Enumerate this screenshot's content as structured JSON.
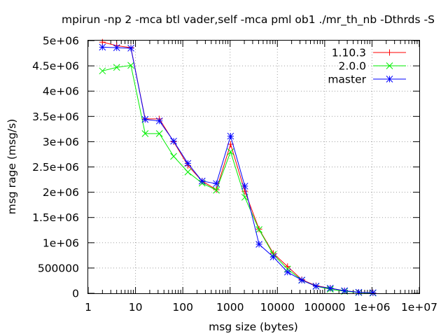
{
  "chart_data": {
    "type": "line",
    "title": "mpirun -np 2 -mca btl vader,self -mca pml ob1 ./mr_th_nb -Dthrds -S",
    "xlabel": "msg size (bytes)",
    "ylabel": "msg rage (msg/s)",
    "xscale": "log",
    "xlim": [
      1,
      10000000
    ],
    "ylim": [
      0,
      5000000
    ],
    "x_ticks": [
      1,
      10,
      100,
      1000,
      10000,
      100000,
      1000000,
      10000000
    ],
    "x_tick_labels": [
      "1",
      "10",
      "100",
      "1000",
      "10000",
      "100000",
      "1e+06",
      "1e+07"
    ],
    "y_ticks": [
      0,
      500000,
      1000000,
      1500000,
      2000000,
      2500000,
      3000000,
      3500000,
      4000000,
      4500000,
      5000000
    ],
    "y_tick_labels": [
      "0",
      "500000",
      "1e+06",
      "1.5e+06",
      "2e+06",
      "2.5e+06",
      "3e+06",
      "3.5e+06",
      "4e+06",
      "4.5e+06",
      "5e+06"
    ],
    "grid": true,
    "legend_position": "top-right",
    "x": [
      2,
      4,
      8,
      16,
      32,
      64,
      128,
      256,
      512,
      1024,
      2048,
      4096,
      8192,
      16384,
      32768,
      65536,
      131072,
      262144,
      524288,
      1048576
    ],
    "series": [
      {
        "name": "1.10.3",
        "color": "#ff0000",
        "marker": "plus",
        "values": [
          4970000,
          4900000,
          4860000,
          3450000,
          3450000,
          3000000,
          2530000,
          2220000,
          2050000,
          2950000,
          2020000,
          1270000,
          790000,
          530000,
          270000,
          150000,
          100000,
          50000,
          20000,
          10000
        ]
      },
      {
        "name": "2.0.0",
        "color": "#00ee00",
        "marker": "cross",
        "values": [
          4400000,
          4470000,
          4510000,
          3160000,
          3160000,
          2710000,
          2400000,
          2180000,
          2040000,
          2800000,
          1900000,
          1260000,
          770000,
          480000,
          260000,
          140000,
          80000,
          40000,
          15000,
          5000
        ]
      },
      {
        "name": "master",
        "color": "#0000ff",
        "marker": "star",
        "values": [
          4870000,
          4860000,
          4850000,
          3440000,
          3410000,
          3010000,
          2570000,
          2220000,
          2170000,
          3110000,
          2120000,
          970000,
          720000,
          420000,
          260000,
          140000,
          100000,
          50000,
          20000,
          10000
        ]
      }
    ]
  }
}
